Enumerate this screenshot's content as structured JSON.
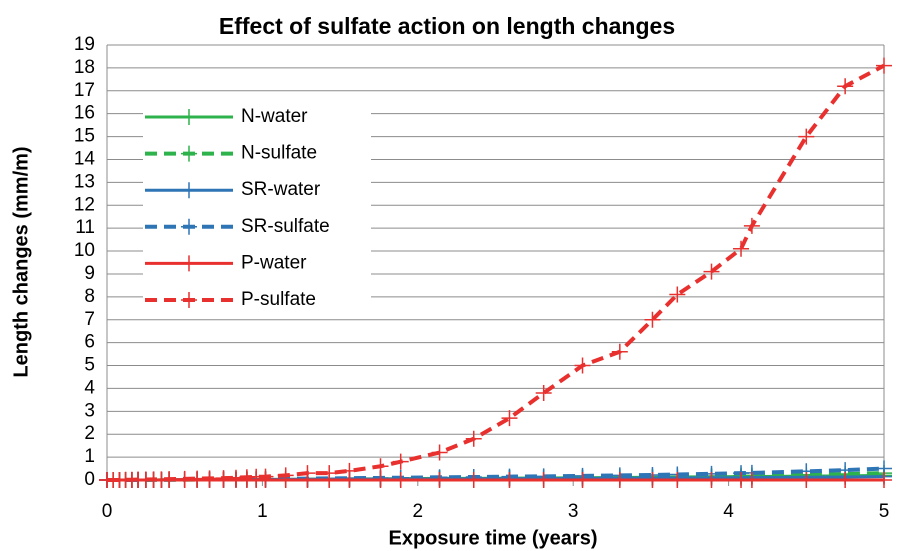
{
  "chart_data": {
    "type": "line",
    "title": "Effect of sulfate action on length changes",
    "xlabel": "Exposure time (years)",
    "ylabel": "Length changes (mm/m)",
    "x": [
      0,
      0.04,
      0.08,
      0.12,
      0.16,
      0.2,
      0.25,
      0.3,
      0.35,
      0.4,
      0.5,
      0.58,
      0.66,
      0.75,
      0.83,
      0.9,
      0.96,
      1.02,
      1.15,
      1.29,
      1.43,
      1.56,
      1.76,
      1.89,
      2.14,
      2.36,
      2.59,
      2.81,
      3.06,
      3.3,
      3.51,
      3.67,
      3.89,
      4.08,
      4.15,
      4.5,
      4.75,
      5.0
    ],
    "series": [
      {
        "name": "N-water",
        "color": "#2eb24c",
        "linestyle": "solid",
        "values": [
          0,
          0,
          0,
          0,
          0,
          0,
          0,
          0,
          0.01,
          0.01,
          0.01,
          0.01,
          0.02,
          0.02,
          0.02,
          0.02,
          0.03,
          0.03,
          0.03,
          0.04,
          0.04,
          0.05,
          0.05,
          0.06,
          0.07,
          0.07,
          0.08,
          0.09,
          0.1,
          0.11,
          0.12,
          0.13,
          0.14,
          0.15,
          0.15,
          0.17,
          0.18,
          0.2
        ]
      },
      {
        "name": "N-sulfate",
        "color": "#2eb24c",
        "linestyle": "dashed",
        "values": [
          0,
          0,
          0,
          0,
          0,
          0,
          0,
          0.01,
          0.01,
          0.01,
          0.01,
          0.02,
          0.02,
          0.02,
          0.02,
          0.03,
          0.03,
          0.03,
          0.04,
          0.04,
          0.05,
          0.05,
          0.06,
          0.07,
          0.08,
          0.09,
          0.1,
          0.11,
          0.12,
          0.13,
          0.14,
          0.15,
          0.17,
          0.19,
          0.2,
          0.23,
          0.26,
          0.3
        ]
      },
      {
        "name": "SR-water",
        "color": "#2e75b6",
        "linestyle": "solid",
        "values": [
          0,
          0,
          0,
          0,
          0,
          0,
          0,
          0,
          0,
          0.01,
          0.01,
          0.01,
          0.01,
          0.01,
          0.02,
          0.02,
          0.02,
          0.02,
          0.03,
          0.03,
          0.03,
          0.04,
          0.04,
          0.04,
          0.05,
          0.05,
          0.06,
          0.06,
          0.07,
          0.08,
          0.08,
          0.09,
          0.1,
          0.1,
          0.11,
          0.12,
          0.13,
          0.15
        ]
      },
      {
        "name": "SR-sulfate",
        "color": "#2e75b6",
        "linestyle": "dashed",
        "values": [
          0,
          0,
          0,
          0,
          0,
          0,
          0.01,
          0.01,
          0.01,
          0.01,
          0.02,
          0.02,
          0.02,
          0.03,
          0.03,
          0.03,
          0.04,
          0.04,
          0.05,
          0.06,
          0.07,
          0.08,
          0.09,
          0.1,
          0.12,
          0.13,
          0.15,
          0.16,
          0.18,
          0.2,
          0.22,
          0.24,
          0.27,
          0.3,
          0.31,
          0.38,
          0.43,
          0.5
        ]
      },
      {
        "name": "P-water",
        "color": "#e8302e",
        "linestyle": "solid",
        "values": [
          0,
          0,
          0,
          0,
          0,
          0,
          0,
          0,
          0,
          0,
          0,
          0,
          0,
          0,
          0,
          0,
          0,
          0,
          0,
          0,
          0,
          0,
          0,
          0,
          0,
          0,
          0,
          0,
          0,
          0,
          0,
          0,
          0,
          0,
          0,
          0,
          0,
          0
        ]
      },
      {
        "name": "P-sulfate",
        "color": "#e8302e",
        "linestyle": "dashed",
        "values": [
          0,
          0,
          0,
          0.01,
          0.01,
          0.02,
          0.02,
          0.03,
          0.03,
          0.04,
          0.05,
          0.06,
          0.07,
          0.08,
          0.1,
          0.12,
          0.14,
          0.15,
          0.2,
          0.3,
          0.3,
          0.4,
          0.6,
          0.8,
          1.2,
          1.8,
          2.7,
          3.8,
          5.0,
          5.6,
          7.0,
          8.1,
          9.1,
          10.1,
          11.1,
          15.0,
          17.2,
          18.1
        ]
      }
    ],
    "xlim": [
      0,
      5
    ],
    "xticks": [
      0,
      1,
      2,
      3,
      4,
      5
    ],
    "ylim": [
      0,
      19
    ],
    "yticks": [
      0,
      1,
      2,
      3,
      4,
      5,
      6,
      7,
      8,
      9,
      10,
      11,
      12,
      13,
      14,
      15,
      16,
      17,
      18,
      19
    ],
    "grid": true,
    "legend": "upper left"
  }
}
